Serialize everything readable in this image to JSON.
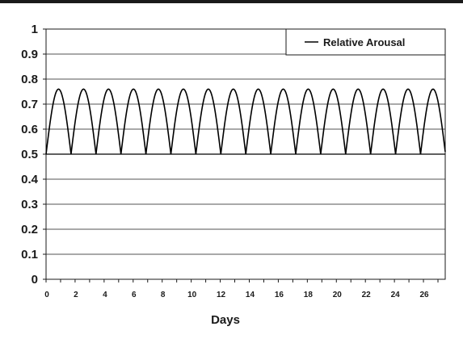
{
  "chart_data": {
    "type": "line",
    "title": "",
    "xlabel": "Days",
    "ylabel": "",
    "xlim": [
      0,
      27.5
    ],
    "ylim": [
      0,
      1
    ],
    "y_ticks": [
      "0",
      "0.1",
      "0.2",
      "0.3",
      "0.4",
      "0.5",
      "0.6",
      "0.7",
      "0.8",
      "0.9",
      "1"
    ],
    "x_ticks": [
      "0",
      "2",
      "4",
      "6",
      "8",
      "10",
      "12",
      "14",
      "16",
      "18",
      "20",
      "22",
      "24",
      "26"
    ],
    "grid": "horizontal",
    "legend_position": "top-right",
    "series": [
      {
        "name": "Relative Arousal",
        "color": "#000000",
        "curve": "rectified-sine",
        "baseline": 0.5,
        "peak": 0.76,
        "period_days": 1.72,
        "cycles": 16
      }
    ]
  }
}
